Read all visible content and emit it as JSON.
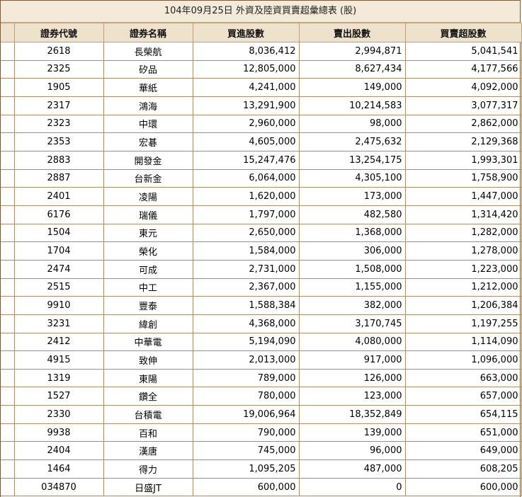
{
  "title": "104年09月25日 外資及陸資買賣超彙總表 (股)",
  "columns": [
    "證券代號",
    "證券名稱",
    "買進股數",
    "賣出股數",
    "買賣超股數"
  ],
  "rows": [
    {
      "code": "2618",
      "name": "長榮航",
      "buy": "8,036,412",
      "sell": "2,994,871",
      "net": "5,041,541"
    },
    {
      "code": "2325",
      "name": "矽品",
      "buy": "12,805,000",
      "sell": "8,627,434",
      "net": "4,177,566"
    },
    {
      "code": "1905",
      "name": "華紙",
      "buy": "4,241,000",
      "sell": "149,000",
      "net": "4,092,000"
    },
    {
      "code": "2317",
      "name": "鴻海",
      "buy": "13,291,900",
      "sell": "10,214,583",
      "net": "3,077,317"
    },
    {
      "code": "2323",
      "name": "中環",
      "buy": "2,960,000",
      "sell": "98,000",
      "net": "2,862,000"
    },
    {
      "code": "2353",
      "name": "宏碁",
      "buy": "4,605,000",
      "sell": "2,475,632",
      "net": "2,129,368"
    },
    {
      "code": "2883",
      "name": "開發金",
      "buy": "15,247,476",
      "sell": "13,254,175",
      "net": "1,993,301"
    },
    {
      "code": "2887",
      "name": "台新金",
      "buy": "6,064,000",
      "sell": "4,305,100",
      "net": "1,758,900"
    },
    {
      "code": "2401",
      "name": "凌陽",
      "buy": "1,620,000",
      "sell": "173,000",
      "net": "1,447,000"
    },
    {
      "code": "6176",
      "name": "瑞儀",
      "buy": "1,797,000",
      "sell": "482,580",
      "net": "1,314,420"
    },
    {
      "code": "1504",
      "name": "東元",
      "buy": "2,650,000",
      "sell": "1,368,000",
      "net": "1,282,000"
    },
    {
      "code": "1704",
      "name": "榮化",
      "buy": "1,584,000",
      "sell": "306,000",
      "net": "1,278,000"
    },
    {
      "code": "2474",
      "name": "可成",
      "buy": "2,731,000",
      "sell": "1,508,000",
      "net": "1,223,000"
    },
    {
      "code": "2515",
      "name": "中工",
      "buy": "2,367,000",
      "sell": "1,155,000",
      "net": "1,212,000"
    },
    {
      "code": "9910",
      "name": "豐泰",
      "buy": "1,588,384",
      "sell": "382,000",
      "net": "1,206,384"
    },
    {
      "code": "3231",
      "name": "緯創",
      "buy": "4,368,000",
      "sell": "3,170,745",
      "net": "1,197,255"
    },
    {
      "code": "2412",
      "name": "中華電",
      "buy": "5,194,090",
      "sell": "4,080,000",
      "net": "1,114,090"
    },
    {
      "code": "4915",
      "name": "致伸",
      "buy": "2,013,000",
      "sell": "917,000",
      "net": "1,096,000"
    },
    {
      "code": "1319",
      "name": "東陽",
      "buy": "789,000",
      "sell": "126,000",
      "net": "663,000"
    },
    {
      "code": "1527",
      "name": "鑽全",
      "buy": "780,000",
      "sell": "123,000",
      "net": "657,000"
    },
    {
      "code": "2330",
      "name": "台積電",
      "buy": "19,006,964",
      "sell": "18,352,849",
      "net": "654,115"
    },
    {
      "code": "9938",
      "name": "百和",
      "buy": "790,000",
      "sell": "139,000",
      "net": "651,000"
    },
    {
      "code": "2404",
      "name": "漢唐",
      "buy": "745,000",
      "sell": "96,000",
      "net": "649,000"
    },
    {
      "code": "1464",
      "name": "得力",
      "buy": "1,095,205",
      "sell": "487,000",
      "net": "608,205"
    },
    {
      "code": "034870",
      "name": "日盛JT",
      "buy": "600,000",
      "sell": "0",
      "net": "600,000"
    }
  ]
}
